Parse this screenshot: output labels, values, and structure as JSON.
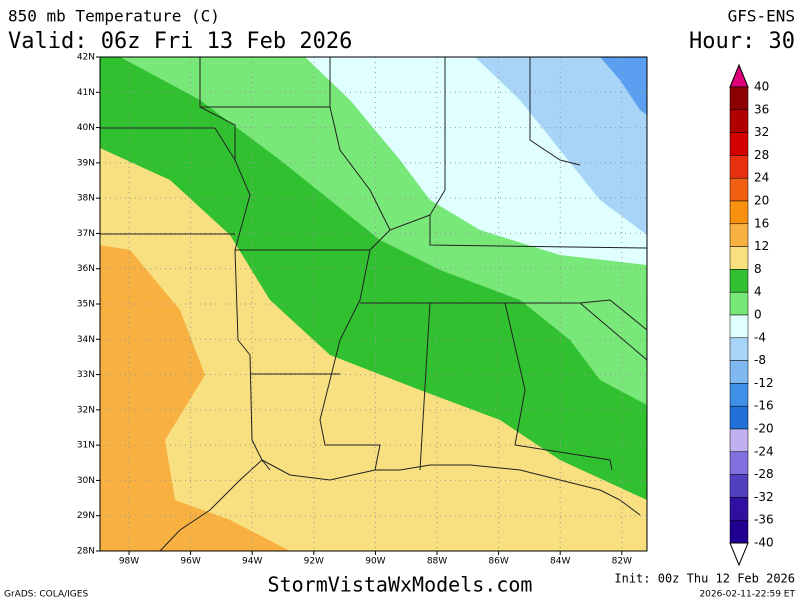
{
  "header": {
    "title": "850 mb Temperature (C)",
    "valid": "Valid: 06z Fri 13 Feb 2026",
    "model": "GFS-ENS",
    "hour": "Hour: 30"
  },
  "map": {
    "lat_labels": [
      "42N",
      "41N",
      "40N",
      "39N",
      "38N",
      "37N",
      "36N",
      "35N",
      "34N",
      "33N",
      "32N",
      "31N",
      "30N",
      "29N",
      "28N"
    ],
    "lon_labels": [
      "98W",
      "96W",
      "94W",
      "92W",
      "90W",
      "88W",
      "86W",
      "84W",
      "82W"
    ]
  },
  "colorbar": {
    "labels": [
      40,
      36,
      32,
      28,
      24,
      20,
      16,
      12,
      8,
      4,
      0,
      -4,
      -8,
      -12,
      -16,
      -20,
      -24,
      -28,
      -32,
      -36,
      -40
    ]
  },
  "footer": {
    "credit": "GrADS: COLA/IGES",
    "site": "StormVistaWxModels.com",
    "init": "Init: 00z Thu 12 Feb 2026",
    "timestamp": "2026-02-11-22:59 ET"
  }
}
